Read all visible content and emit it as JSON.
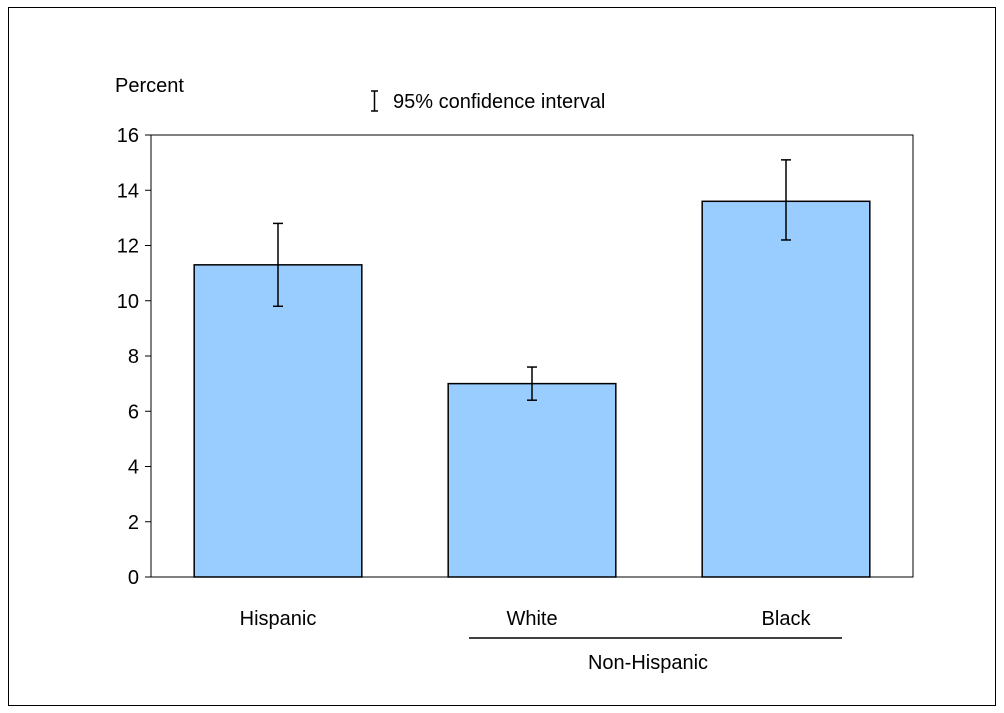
{
  "chart_data": {
    "type": "bar",
    "ylabel": "Percent",
    "legend": {
      "label": "95% confidence interval",
      "placement": "top-center"
    },
    "categories": [
      "Hispanic",
      "White",
      "Black"
    ],
    "values": [
      11.3,
      7.0,
      13.6
    ],
    "ci_low": [
      9.8,
      6.4,
      12.2
    ],
    "ci_high": [
      12.8,
      7.6,
      15.1
    ],
    "group_label": {
      "label": "Non-Hispanic",
      "categories": [
        "White",
        "Black"
      ]
    },
    "ylim": [
      0,
      16
    ],
    "yticks": [
      0,
      2,
      4,
      6,
      8,
      10,
      12,
      14,
      16
    ],
    "grid": false,
    "colors": {
      "bar_fill": "#99ccff",
      "bar_stroke": "#000000",
      "axis": "#000000"
    }
  }
}
